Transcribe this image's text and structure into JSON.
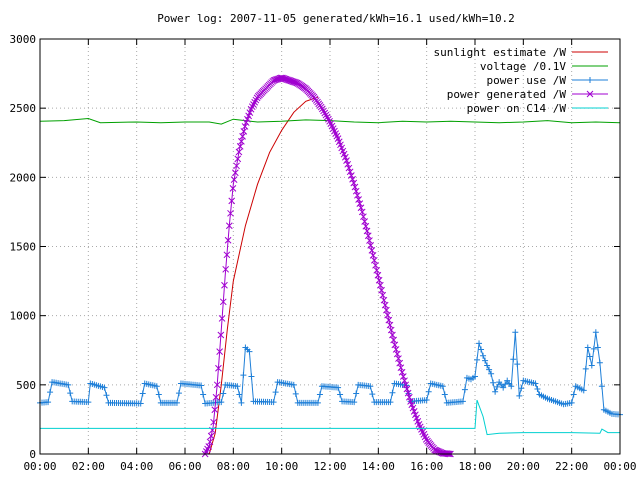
{
  "chart_data": {
    "type": "line",
    "title": "Power log: 2007-11-05 generated/kWh=16.1 used/kWh=10.2",
    "xlabel": "",
    "ylabel": "",
    "x_unit": "time of day",
    "xlim": [
      "00:00",
      "24:00"
    ],
    "ylim": [
      0,
      3000
    ],
    "x_ticks": [
      "00:00",
      "02:00",
      "04:00",
      "06:00",
      "08:00",
      "10:00",
      "12:00",
      "14:00",
      "16:00",
      "18:00",
      "20:00",
      "22:00",
      "00:00"
    ],
    "y_ticks": [
      "0",
      "500",
      "1000",
      "1500",
      "2000",
      "2500",
      "3000"
    ],
    "grid": true,
    "legend_position": "top-right",
    "series": [
      {
        "name": "sunlight estimate /W",
        "color": "#cc0000",
        "marker": "none",
        "points": [
          [
            "07:00",
            0
          ],
          [
            "07:15",
            150
          ],
          [
            "07:30",
            500
          ],
          [
            "07:45",
            900
          ],
          [
            "08:00",
            1250
          ],
          [
            "08:30",
            1650
          ],
          [
            "09:00",
            1950
          ],
          [
            "09:30",
            2180
          ],
          [
            "10:00",
            2340
          ],
          [
            "10:30",
            2470
          ],
          [
            "11:00",
            2550
          ],
          [
            "11:30",
            2580
          ]
        ]
      },
      {
        "name": "voltage /0.1V",
        "color": "#00a000",
        "marker": "none",
        "points": [
          [
            "00:00",
            2405
          ],
          [
            "01:00",
            2410
          ],
          [
            "02:00",
            2425
          ],
          [
            "02:30",
            2395
          ],
          [
            "04:00",
            2400
          ],
          [
            "05:00",
            2395
          ],
          [
            "06:00",
            2400
          ],
          [
            "07:00",
            2400
          ],
          [
            "07:30",
            2385
          ],
          [
            "08:00",
            2420
          ],
          [
            "09:00",
            2400
          ],
          [
            "10:00",
            2405
          ],
          [
            "11:00",
            2415
          ],
          [
            "12:00",
            2410
          ],
          [
            "13:00",
            2400
          ],
          [
            "14:00",
            2395
          ],
          [
            "15:00",
            2405
          ],
          [
            "16:00",
            2400
          ],
          [
            "17:00",
            2405
          ],
          [
            "18:00",
            2400
          ],
          [
            "19:00",
            2395
          ],
          [
            "20:00",
            2400
          ],
          [
            "21:00",
            2410
          ],
          [
            "22:00",
            2395
          ],
          [
            "23:00",
            2400
          ],
          [
            "24:00",
            2395
          ]
        ]
      },
      {
        "name": "power use /W",
        "color": "#1e7fd8",
        "marker": "plus",
        "points": [
          [
            "00:00",
            370
          ],
          [
            "00:20",
            375
          ],
          [
            "00:30",
            520
          ],
          [
            "01:10",
            500
          ],
          [
            "01:20",
            380
          ],
          [
            "02:00",
            375
          ],
          [
            "02:05",
            510
          ],
          [
            "02:40",
            480
          ],
          [
            "02:50",
            370
          ],
          [
            "04:10",
            365
          ],
          [
            "04:20",
            510
          ],
          [
            "04:50",
            490
          ],
          [
            "05:00",
            370
          ],
          [
            "05:40",
            370
          ],
          [
            "05:50",
            510
          ],
          [
            "06:40",
            495
          ],
          [
            "06:50",
            365
          ],
          [
            "07:30",
            375
          ],
          [
            "07:40",
            500
          ],
          [
            "08:10",
            490
          ],
          [
            "08:20",
            370
          ],
          [
            "08:30",
            770
          ],
          [
            "08:40",
            740
          ],
          [
            "08:50",
            380
          ],
          [
            "09:40",
            375
          ],
          [
            "09:50",
            520
          ],
          [
            "10:30",
            500
          ],
          [
            "10:40",
            370
          ],
          [
            "11:30",
            370
          ],
          [
            "11:40",
            490
          ],
          [
            "12:20",
            480
          ],
          [
            "12:30",
            380
          ],
          [
            "13:00",
            375
          ],
          [
            "13:10",
            500
          ],
          [
            "13:40",
            490
          ],
          [
            "13:50",
            375
          ],
          [
            "14:30",
            375
          ],
          [
            "14:40",
            510
          ],
          [
            "15:10",
            495
          ],
          [
            "15:20",
            380
          ],
          [
            "16:00",
            390
          ],
          [
            "16:10",
            510
          ],
          [
            "16:40",
            490
          ],
          [
            "16:50",
            370
          ],
          [
            "17:30",
            380
          ],
          [
            "17:40",
            550
          ],
          [
            "17:50",
            540
          ],
          [
            "18:00",
            560
          ],
          [
            "18:10",
            800
          ],
          [
            "18:20",
            710
          ],
          [
            "18:30",
            640
          ],
          [
            "18:40",
            580
          ],
          [
            "18:50",
            450
          ],
          [
            "19:00",
            520
          ],
          [
            "19:10",
            480
          ],
          [
            "19:20",
            530
          ],
          [
            "19:30",
            490
          ],
          [
            "19:40",
            880
          ],
          [
            "19:50",
            420
          ],
          [
            "20:00",
            530
          ],
          [
            "20:30",
            510
          ],
          [
            "20:40",
            430
          ],
          [
            "21:00",
            400
          ],
          [
            "21:20",
            380
          ],
          [
            "21:40",
            360
          ],
          [
            "22:00",
            370
          ],
          [
            "22:10",
            490
          ],
          [
            "22:30",
            460
          ],
          [
            "22:40",
            770
          ],
          [
            "22:50",
            640
          ],
          [
            "23:00",
            880
          ],
          [
            "23:10",
            660
          ],
          [
            "23:20",
            320
          ],
          [
            "23:40",
            290
          ],
          [
            "24:00",
            285
          ]
        ]
      },
      {
        "name": "power generated /W",
        "color": "#a000d0",
        "marker": "cross",
        "points": [
          [
            "00:00",
            0
          ],
          [
            "06:50",
            0
          ],
          [
            "07:00",
            60
          ],
          [
            "07:10",
            200
          ],
          [
            "07:20",
            500
          ],
          [
            "07:30",
            900
          ],
          [
            "07:40",
            1300
          ],
          [
            "07:50",
            1650
          ],
          [
            "08:00",
            1950
          ],
          [
            "08:15",
            2200
          ],
          [
            "08:30",
            2380
          ],
          [
            "08:45",
            2500
          ],
          [
            "09:00",
            2580
          ],
          [
            "09:20",
            2640
          ],
          [
            "09:40",
            2700
          ],
          [
            "10:00",
            2720
          ],
          [
            "10:20",
            2700
          ],
          [
            "10:40",
            2680
          ],
          [
            "11:00",
            2640
          ],
          [
            "11:20",
            2580
          ],
          [
            "11:40",
            2500
          ],
          [
            "12:00",
            2400
          ],
          [
            "12:20",
            2280
          ],
          [
            "12:40",
            2130
          ],
          [
            "13:00",
            1950
          ],
          [
            "13:20",
            1750
          ],
          [
            "13:40",
            1520
          ],
          [
            "14:00",
            1280
          ],
          [
            "14:20",
            1040
          ],
          [
            "14:40",
            800
          ],
          [
            "15:00",
            580
          ],
          [
            "15:20",
            380
          ],
          [
            "15:40",
            220
          ],
          [
            "16:00",
            100
          ],
          [
            "16:20",
            30
          ],
          [
            "16:40",
            5
          ],
          [
            "17:00",
            0
          ],
          [
            "24:00",
            0
          ]
        ]
      },
      {
        "name": "power on C14 /W",
        "color": "#00d0d0",
        "marker": "none",
        "points": [
          [
            "00:00",
            185
          ],
          [
            "06:00",
            185
          ],
          [
            "12:00",
            185
          ],
          [
            "18:00",
            185
          ],
          [
            "18:05",
            390
          ],
          [
            "18:20",
            270
          ],
          [
            "18:30",
            140
          ],
          [
            "19:00",
            150
          ],
          [
            "20:00",
            155
          ],
          [
            "22:00",
            155
          ],
          [
            "23:10",
            150
          ],
          [
            "23:15",
            180
          ],
          [
            "23:30",
            155
          ],
          [
            "24:00",
            155
          ]
        ]
      }
    ]
  }
}
